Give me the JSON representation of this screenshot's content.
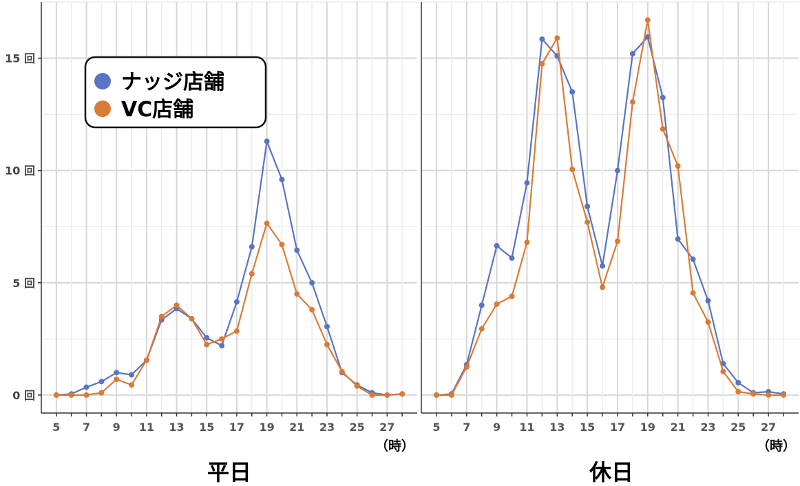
{
  "chart_data": [
    {
      "type": "line",
      "title": "平日",
      "x": [
        5,
        6,
        7,
        8,
        9,
        10,
        11,
        12,
        13,
        14,
        15,
        16,
        17,
        18,
        19,
        20,
        21,
        22,
        23,
        24,
        25,
        26,
        27,
        28
      ],
      "xticks": [
        "5",
        "7",
        "9",
        "11",
        "13",
        "15",
        "17",
        "19",
        "21",
        "23",
        "25",
        "27"
      ],
      "xunit": "（時）",
      "yticks": [
        "0 回",
        "5 回",
        "10 回",
        "15 回"
      ],
      "ylim": [
        -0.8,
        17.5
      ],
      "grid": true,
      "series": [
        {
          "name": "ナッジ店舗",
          "color": "#5874C3",
          "values": [
            0.0,
            0.05,
            0.35,
            0.6,
            1.0,
            0.9,
            1.55,
            3.35,
            3.85,
            3.4,
            2.55,
            2.2,
            4.15,
            6.6,
            11.3,
            9.6,
            6.45,
            5.0,
            3.05,
            1.0,
            0.45,
            0.1,
            0.0,
            0.05
          ]
        },
        {
          "name": "VC店舗",
          "color": "#D97B36",
          "values": [
            0.0,
            0.0,
            0.0,
            0.1,
            0.7,
            0.45,
            1.55,
            3.5,
            4.0,
            3.4,
            2.25,
            2.5,
            2.85,
            5.4,
            7.65,
            6.7,
            4.5,
            3.8,
            2.25,
            1.05,
            0.4,
            0.0,
            0.0,
            0.05
          ]
        }
      ]
    },
    {
      "type": "line",
      "title": "休日",
      "x": [
        5,
        6,
        7,
        8,
        9,
        10,
        11,
        12,
        13,
        14,
        15,
        16,
        17,
        18,
        19,
        20,
        21,
        22,
        23,
        24,
        25,
        26,
        27,
        28
      ],
      "xticks": [
        "5",
        "7",
        "9",
        "11",
        "13",
        "15",
        "17",
        "19",
        "21",
        "23",
        "25",
        "27"
      ],
      "xunit": "（時）",
      "yticks": [],
      "ylim": [
        -0.8,
        17.5
      ],
      "grid": true,
      "series": [
        {
          "name": "ナッジ店舗",
          "color": "#5874C3",
          "values": [
            0.0,
            0.05,
            1.35,
            4.0,
            6.65,
            6.1,
            9.45,
            15.85,
            15.1,
            13.5,
            8.4,
            5.75,
            10.0,
            15.2,
            15.95,
            13.25,
            6.95,
            6.05,
            4.2,
            1.4,
            0.55,
            0.1,
            0.15,
            0.05
          ]
        },
        {
          "name": "VC店舗",
          "color": "#D97B36",
          "values": [
            0.0,
            0.0,
            1.25,
            2.95,
            4.05,
            4.4,
            6.8,
            14.75,
            15.9,
            10.05,
            7.7,
            4.8,
            6.85,
            13.05,
            16.7,
            11.85,
            10.2,
            4.55,
            3.25,
            1.05,
            0.15,
            0.05,
            0.0,
            0.0
          ]
        }
      ]
    }
  ],
  "legend": {
    "placement": "top-left",
    "items": [
      {
        "label": "ナッジ店舗",
        "color": "#5874C3"
      },
      {
        "label": "VC店舗",
        "color": "#D97B36"
      }
    ]
  }
}
